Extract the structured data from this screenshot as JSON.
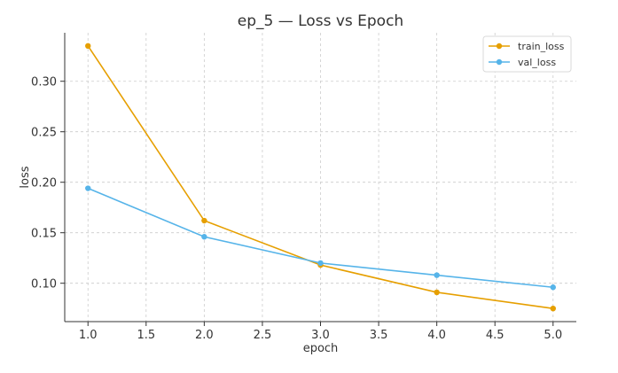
{
  "chart_data": {
    "type": "line",
    "title": "ep_5 — Loss vs Epoch",
    "xlabel": "epoch",
    "ylabel": "loss",
    "x": [
      1.0,
      2.0,
      3.0,
      4.0,
      5.0
    ],
    "xlim": [
      0.8,
      5.2
    ],
    "ylim": [
      0.062,
      0.348
    ],
    "xticks": [
      "1.0",
      "1.5",
      "2.0",
      "2.5",
      "3.0",
      "3.5",
      "4.0",
      "4.5",
      "5.0"
    ],
    "yticks": [
      "0.10",
      "0.15",
      "0.20",
      "0.25",
      "0.30"
    ],
    "grid": true,
    "legend_position": "top-right",
    "series": [
      {
        "name": "train_loss",
        "color": "#E69F00",
        "values": [
          0.335,
          0.162,
          0.118,
          0.091,
          0.075
        ]
      },
      {
        "name": "val_loss",
        "color": "#56B4E9",
        "values": [
          0.194,
          0.146,
          0.12,
          0.108,
          0.096
        ]
      }
    ]
  }
}
